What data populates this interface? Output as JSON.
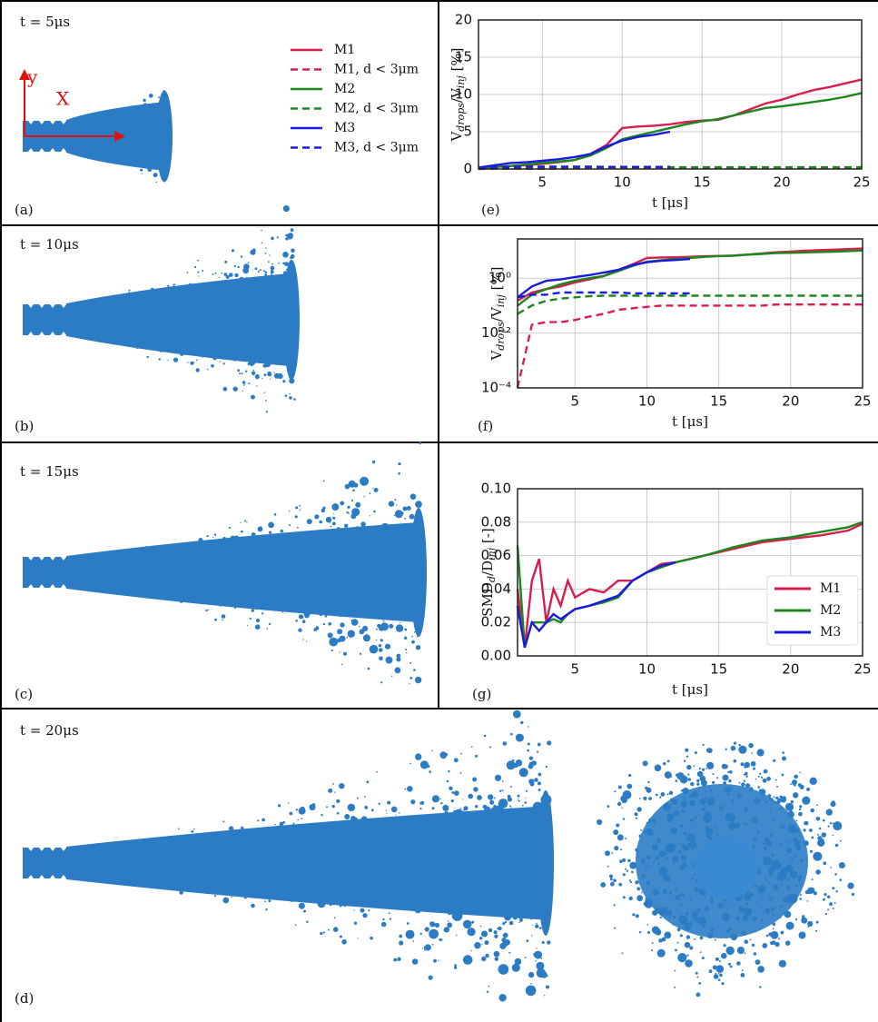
{
  "panels": [
    {
      "time": "t = 5μs",
      "label": "(a)"
    },
    {
      "time": "t = 10μs",
      "label": "(b)"
    },
    {
      "time": "t = 15μs",
      "label": "(c)"
    },
    {
      "time": "t = 20μs",
      "label": "(d)"
    }
  ],
  "axis_arrows": {
    "y": "y",
    "x": "X"
  },
  "chart_data": [
    {
      "type": "line",
      "panel": "(e)",
      "ylabel": [
        "V",
        "drops",
        "/V",
        "inj",
        " [%]"
      ],
      "xlabel": "t [μs]",
      "x": [
        1,
        2,
        3,
        4,
        5,
        6,
        7,
        8,
        9,
        10,
        11,
        12,
        13,
        14,
        15,
        16,
        17,
        18,
        19,
        20,
        21,
        22,
        23,
        24,
        25
      ],
      "xlim": [
        1,
        25
      ],
      "xticks": [
        5,
        10,
        15,
        20,
        25
      ],
      "ylim": [
        0,
        20
      ],
      "yticks": [
        0,
        5,
        10,
        15,
        20
      ],
      "grid": true,
      "legend": "left-panel",
      "series": [
        {
          "name": "M1",
          "color": "#d81e4e",
          "dash": false,
          "values": [
            0.15,
            0.3,
            0.4,
            0.5,
            0.7,
            0.9,
            1.2,
            2.0,
            3.2,
            5.5,
            5.7,
            5.8,
            6.0,
            6.3,
            6.5,
            6.6,
            7.2,
            8.0,
            8.8,
            9.3,
            10.0,
            10.6,
            11.0,
            11.5,
            12.0
          ]
        },
        {
          "name": "M1, d < 3μm",
          "color": "#d81e4e",
          "dash": true,
          "values": [
            0.0001,
            0.02,
            0.025,
            0.025,
            0.03,
            0.04,
            0.05,
            0.07,
            0.08,
            0.09,
            0.1,
            0.1,
            0.1,
            0.1,
            0.1,
            0.1,
            0.1,
            0.1,
            0.11,
            0.11,
            0.11,
            0.11,
            0.11,
            0.11,
            0.11
          ]
        },
        {
          "name": "M2",
          "color": "#1c871c",
          "dash": false,
          "values": [
            0.1,
            0.25,
            0.4,
            0.6,
            0.8,
            1.0,
            1.2,
            1.8,
            2.8,
            4.0,
            4.5,
            5.0,
            5.5,
            6.0,
            6.4,
            6.7,
            7.2,
            7.7,
            8.2,
            8.4,
            8.7,
            9.0,
            9.3,
            9.7,
            10.2
          ]
        },
        {
          "name": "M2, d < 3μm",
          "color": "#1c871c",
          "dash": true,
          "values": [
            0.05,
            0.1,
            0.15,
            0.18,
            0.2,
            0.22,
            0.23,
            0.23,
            0.23,
            0.23,
            0.23,
            0.23,
            0.23,
            0.23,
            0.23,
            0.23,
            0.23,
            0.23,
            0.23,
            0.23,
            0.23,
            0.23,
            0.23,
            0.23,
            0.23
          ]
        },
        {
          "name": "M3",
          "color": "#1a1ae0",
          "dash": false,
          "values": [
            0.2,
            0.5,
            0.8,
            0.9,
            1.1,
            1.3,
            1.6,
            2.0,
            3.0,
            3.8,
            4.3,
            4.6,
            5.0,
            null,
            null,
            null,
            null,
            null,
            null,
            null,
            null,
            null,
            null,
            null,
            null
          ]
        },
        {
          "name": "M3, d < 3μm",
          "color": "#1a1ae0",
          "dash": true,
          "values": [
            0.2,
            0.25,
            0.25,
            0.3,
            0.3,
            0.3,
            0.3,
            0.3,
            0.28,
            0.28,
            0.28,
            0.28,
            0.28,
            null,
            null,
            null,
            null,
            null,
            null,
            null,
            null,
            null,
            null,
            null,
            null
          ]
        }
      ]
    },
    {
      "type": "line",
      "panel": "(f)",
      "ylabel": [
        "V",
        "drops",
        "/V",
        "inj",
        " [%]"
      ],
      "xlabel": "t [μs]",
      "yscale": "log",
      "x": [
        1,
        2,
        3,
        4,
        5,
        6,
        7,
        8,
        9,
        10,
        11,
        12,
        13,
        14,
        15,
        16,
        17,
        18,
        19,
        20,
        21,
        22,
        23,
        24,
        25
      ],
      "xlim": [
        1,
        25
      ],
      "xticks": [
        5,
        10,
        15,
        20,
        25
      ],
      "ylim": [
        0.0001,
        27
      ],
      "yticks": [
        {
          "value": 0.0001,
          "label": "10⁻⁴"
        },
        {
          "value": 0.01,
          "label": "10⁻²"
        },
        {
          "value": 1,
          "label": "10⁰"
        }
      ],
      "grid": true,
      "series": [
        {
          "color": "#d81e4e",
          "dash": false,
          "values": [
            0.15,
            0.3,
            0.4,
            0.5,
            0.7,
            0.9,
            1.2,
            2.0,
            3.2,
            5.5,
            5.7,
            5.8,
            6.0,
            6.3,
            6.5,
            6.6,
            7.2,
            8.0,
            8.8,
            9.3,
            10.0,
            10.6,
            11.0,
            11.5,
            12.0
          ]
        },
        {
          "color": "#d81e4e",
          "dash": true,
          "values": [
            0.0001,
            0.02,
            0.025,
            0.025,
            0.03,
            0.04,
            0.05,
            0.07,
            0.08,
            0.09,
            0.1,
            0.1,
            0.1,
            0.1,
            0.1,
            0.1,
            0.1,
            0.1,
            0.11,
            0.11,
            0.11,
            0.11,
            0.11,
            0.11,
            0.11
          ]
        },
        {
          "color": "#1c871c",
          "dash": false,
          "values": [
            0.1,
            0.25,
            0.4,
            0.6,
            0.8,
            1.0,
            1.2,
            1.8,
            2.8,
            4.0,
            4.5,
            5.0,
            5.5,
            6.0,
            6.4,
            6.7,
            7.2,
            7.7,
            8.2,
            8.4,
            8.7,
            9.0,
            9.3,
            9.7,
            10.2
          ]
        },
        {
          "color": "#1c871c",
          "dash": true,
          "values": [
            0.05,
            0.1,
            0.15,
            0.18,
            0.2,
            0.22,
            0.23,
            0.23,
            0.23,
            0.23,
            0.23,
            0.23,
            0.23,
            0.23,
            0.23,
            0.23,
            0.23,
            0.23,
            0.23,
            0.23,
            0.23,
            0.23,
            0.23,
            0.23,
            0.23
          ]
        },
        {
          "color": "#1a1ae0",
          "dash": false,
          "values": [
            0.2,
            0.5,
            0.8,
            0.9,
            1.1,
            1.3,
            1.6,
            2.0,
            3.0,
            3.8,
            4.3,
            4.6,
            5.0,
            null,
            null,
            null,
            null,
            null,
            null,
            null,
            null,
            null,
            null,
            null,
            null
          ]
        },
        {
          "color": "#1a1ae0",
          "dash": true,
          "values": [
            0.2,
            0.25,
            0.25,
            0.3,
            0.3,
            0.3,
            0.3,
            0.3,
            0.28,
            0.28,
            0.28,
            0.28,
            0.28,
            null,
            null,
            null,
            null,
            null,
            null,
            null,
            null,
            null,
            null,
            null,
            null
          ]
        }
      ]
    },
    {
      "type": "line",
      "panel": "(g)",
      "ylabel": [
        "SMD",
        "d",
        "/D",
        "inj",
        " [-]"
      ],
      "xlabel": "t [μs]",
      "x": [
        1,
        1.5,
        2,
        2.5,
        3,
        3.5,
        4,
        4.5,
        5,
        6,
        7,
        8,
        9,
        10,
        11,
        12,
        14,
        16,
        18,
        20,
        22,
        24,
        25
      ],
      "xlim": [
        1,
        25
      ],
      "xticks": [
        5,
        10,
        15,
        20,
        25
      ],
      "ylim": [
        0,
        0.1
      ],
      "yticks": [
        {
          "value": 0,
          "label": "0.00"
        },
        {
          "value": 0.02,
          "label": "0.02"
        },
        {
          "value": 0.04,
          "label": "0.04"
        },
        {
          "value": 0.06,
          "label": "0.06"
        },
        {
          "value": 0.08,
          "label": "0.08"
        },
        {
          "value": 0.1,
          "label": "0.10"
        }
      ],
      "grid": true,
      "legend": "lower right",
      "series": [
        {
          "name": "M1",
          "color": "#d81e4e",
          "dash": false,
          "values": [
            0.04,
            0.005,
            0.045,
            0.058,
            0.02,
            0.04,
            0.03,
            0.045,
            0.035,
            0.04,
            0.038,
            0.045,
            0.045,
            0.05,
            0.055,
            0.056,
            0.06,
            0.064,
            0.068,
            0.07,
            0.072,
            0.075,
            0.079
          ]
        },
        {
          "name": "M2",
          "color": "#1c871c",
          "dash": false,
          "values": [
            0.066,
            0.005,
            0.02,
            0.02,
            0.02,
            0.022,
            0.02,
            0.025,
            0.028,
            0.03,
            0.032,
            0.035,
            0.045,
            0.05,
            0.053,
            0.056,
            0.06,
            0.065,
            0.069,
            0.071,
            0.074,
            0.077,
            0.08
          ]
        },
        {
          "name": "M3",
          "color": "#1a1ae0",
          "dash": false,
          "values": [
            0.03,
            0.005,
            0.02,
            0.015,
            0.02,
            0.025,
            0.022,
            0.025,
            0.028,
            0.03,
            0.033,
            0.036,
            0.045,
            0.05,
            0.054,
            0.056,
            null,
            null,
            null,
            null,
            null,
            null,
            null
          ]
        }
      ]
    }
  ]
}
